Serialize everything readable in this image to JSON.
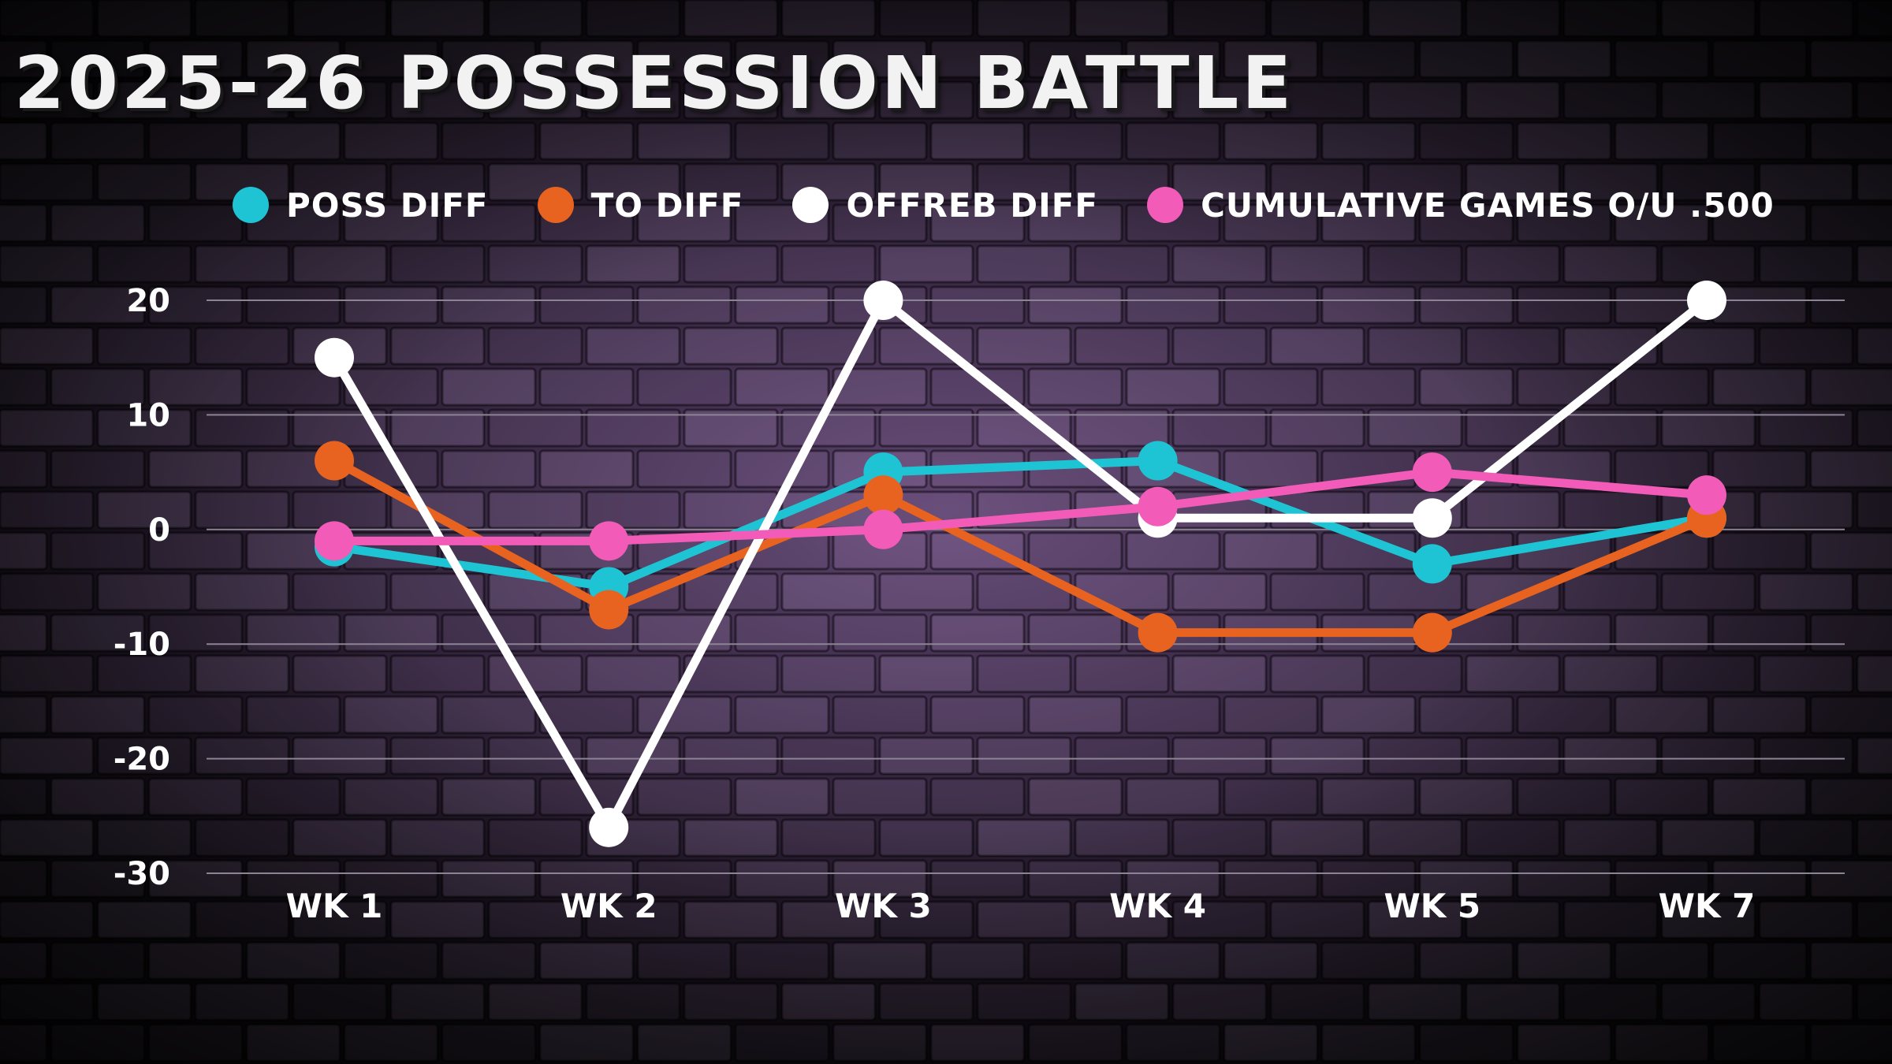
{
  "colors": {
    "poss_diff": "#1fc4d4",
    "to_diff": "#e8631f",
    "offreb_diff": "#ffffff",
    "cumulative": "#f25cb8",
    "gridline": "#8c8494"
  },
  "chart_data": {
    "type": "line",
    "title": "2025-26 POSSESSION BATTLE",
    "xlabel": "",
    "ylabel": "",
    "categories": [
      "WK 1",
      "WK 2",
      "WK 3",
      "WK 4",
      "WK 5",
      "WK 7"
    ],
    "ylim": [
      -30,
      20
    ],
    "yticks": [
      20,
      10,
      0,
      -10,
      -20,
      -30
    ],
    "grid": true,
    "legend_position": "top",
    "series": [
      {
        "name": "POSS DIFF",
        "color_key": "poss_diff",
        "values": [
          -1.5,
          -5,
          5,
          6,
          -3,
          1
        ]
      },
      {
        "name": "TO DIFF",
        "color_key": "to_diff",
        "values": [
          6,
          -7,
          3,
          -9,
          -9,
          1
        ]
      },
      {
        "name": "OFFREB DIFF",
        "color_key": "offreb_diff",
        "values": [
          15,
          -26,
          20,
          1,
          1,
          20
        ]
      },
      {
        "name": "CUMULATIVE GAMES O/U .500",
        "color_key": "cumulative",
        "values": [
          -1,
          -1,
          0,
          2,
          5,
          3
        ]
      }
    ]
  }
}
